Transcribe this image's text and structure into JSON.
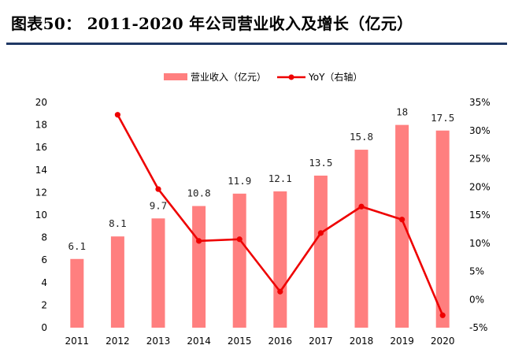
{
  "title": "图表50： 2011-2020 年公司营业收入及增长（亿元）",
  "colors": {
    "bar": "#FF7F7F",
    "line": "#EE0000",
    "rule": "#1F3864"
  },
  "chart_data": {
    "type": "bar",
    "categories": [
      "2011",
      "2012",
      "2013",
      "2014",
      "2015",
      "2016",
      "2017",
      "2018",
      "2019",
      "2020"
    ],
    "series": [
      {
        "name": "营业收入（亿元）",
        "type": "bar",
        "axis": "left",
        "values": [
          6.1,
          8.1,
          9.7,
          10.8,
          11.9,
          12.1,
          13.5,
          15.8,
          18,
          17.5
        ],
        "labels": [
          "6.1",
          "8.1",
          "9.7",
          "10.8",
          "11.9",
          "12.1",
          "13.5",
          "15.8",
          "18",
          "17.5"
        ]
      },
      {
        "name": "YoY（右轴）",
        "type": "line",
        "axis": "right",
        "values": [
          null,
          32.8,
          19.6,
          10.4,
          10.7,
          1.4,
          11.8,
          16.5,
          14.2,
          -2.8
        ]
      }
    ],
    "y_left": {
      "min": 0,
      "max": 20,
      "ticks": [
        "0",
        "2",
        "4",
        "6",
        "8",
        "10",
        "12",
        "14",
        "16",
        "18",
        "20"
      ]
    },
    "y_right": {
      "min": -5,
      "max": 35,
      "ticks": [
        "-5%",
        "0%",
        "5%",
        "10%",
        "15%",
        "20%",
        "25%",
        "30%",
        "35%"
      ]
    },
    "legend": "top-center",
    "grid": false
  }
}
